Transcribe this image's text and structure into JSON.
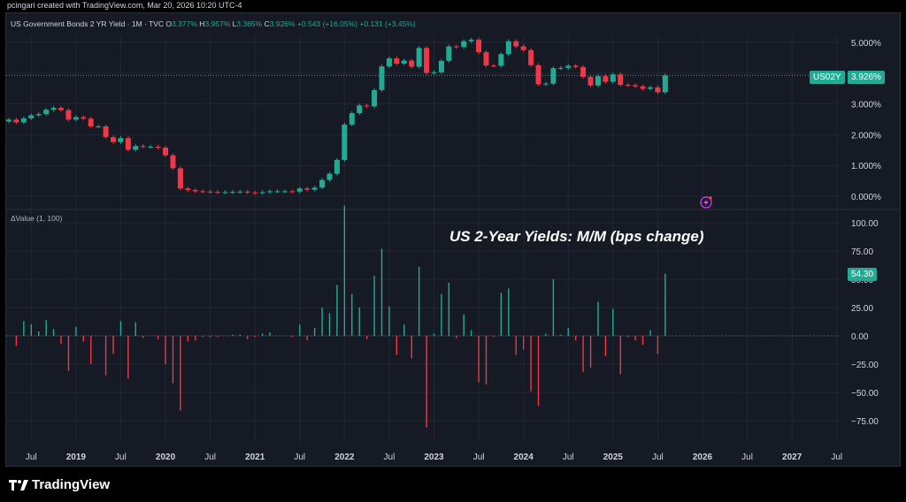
{
  "credit": "pcingari created with TradingView.com, Mar 20, 2026 10:20 UTC-4",
  "header": {
    "title": "US Government Bonds 2 YR Yield · 1M · TVC",
    "o_label": "O",
    "o_value": "3.377%",
    "h_label": "H",
    "h_value": "3.957%",
    "l_label": "L",
    "l_value": "3.365%",
    "c_label": "C",
    "c_value": "3.926%",
    "change1": "+0.543 (+16.05%)",
    "change2": "+0.131 (+3.45%)"
  },
  "symbol_badge": "US02Y",
  "price_badge": "3.926%",
  "indicator_label": "ΔValue (1, 100)",
  "indicator_badge": "54.30",
  "annotation": "US 2-Year Yields: M/M (bps change)",
  "brand": "TradingView",
  "colors": {
    "up": "#22ab94",
    "down": "#f23645",
    "background": "#161a25",
    "grid": "#232734"
  },
  "chart_data": [
    {
      "type": "candlestick",
      "title": "US Government Bonds 2 YR Yield · 1M · TVC",
      "ylim": [
        0,
        5
      ],
      "yticks": [
        "5.000%",
        "4.000%",
        "3.000%",
        "2.000%",
        "1.000%",
        "0.000%"
      ],
      "x_tick_labels": [
        "Jul",
        "2019",
        "Jul",
        "2020",
        "Jul",
        "2021",
        "Jul",
        "2022",
        "Jul",
        "2023",
        "Jul",
        "2024",
        "Jul",
        "2025",
        "Jul",
        "2026",
        "Jul",
        "2027",
        "Jul"
      ],
      "start": "2018-04",
      "closes": [
        2.49,
        2.4,
        2.53,
        2.63,
        2.67,
        2.81,
        2.87,
        2.8,
        2.49,
        2.57,
        2.52,
        2.27,
        2.27,
        1.92,
        1.76,
        1.89,
        1.51,
        1.63,
        1.61,
        1.61,
        1.58,
        1.33,
        0.91,
        0.25,
        0.2,
        0.16,
        0.15,
        0.14,
        0.13,
        0.13,
        0.14,
        0.15,
        0.12,
        0.11,
        0.13,
        0.16,
        0.16,
        0.16,
        0.15,
        0.25,
        0.21,
        0.28,
        0.53,
        0.73,
        1.18,
        2.33,
        2.7,
        2.95,
        2.92,
        3.45,
        4.22,
        4.48,
        4.31,
        4.41,
        4.21,
        4.82,
        4.01,
        4.03,
        4.4,
        4.87,
        4.85,
        5.04,
        5.09,
        4.68,
        4.25,
        4.24,
        4.62,
        5.04,
        4.87,
        4.75,
        4.26,
        3.64,
        3.66,
        4.16,
        4.17,
        4.24,
        4.2,
        3.88,
        3.6,
        3.9,
        3.72,
        3.96,
        3.62,
        3.61,
        3.57,
        3.49,
        3.54,
        3.38,
        3.93
      ],
      "last_close": 3.926,
      "last_close_label": "3.926%"
    },
    {
      "type": "bar",
      "title": "ΔValue (1, 100)",
      "ylim": [
        -85,
        105
      ],
      "yticks": [
        "100.00",
        "75.00",
        "50.00",
        "25.00",
        "0.00",
        "−25.00",
        "−50.00",
        "−75.00"
      ],
      "note": "values are monthly change in basis points = (close − previous close) × 100",
      "last_value": 54.3
    }
  ]
}
